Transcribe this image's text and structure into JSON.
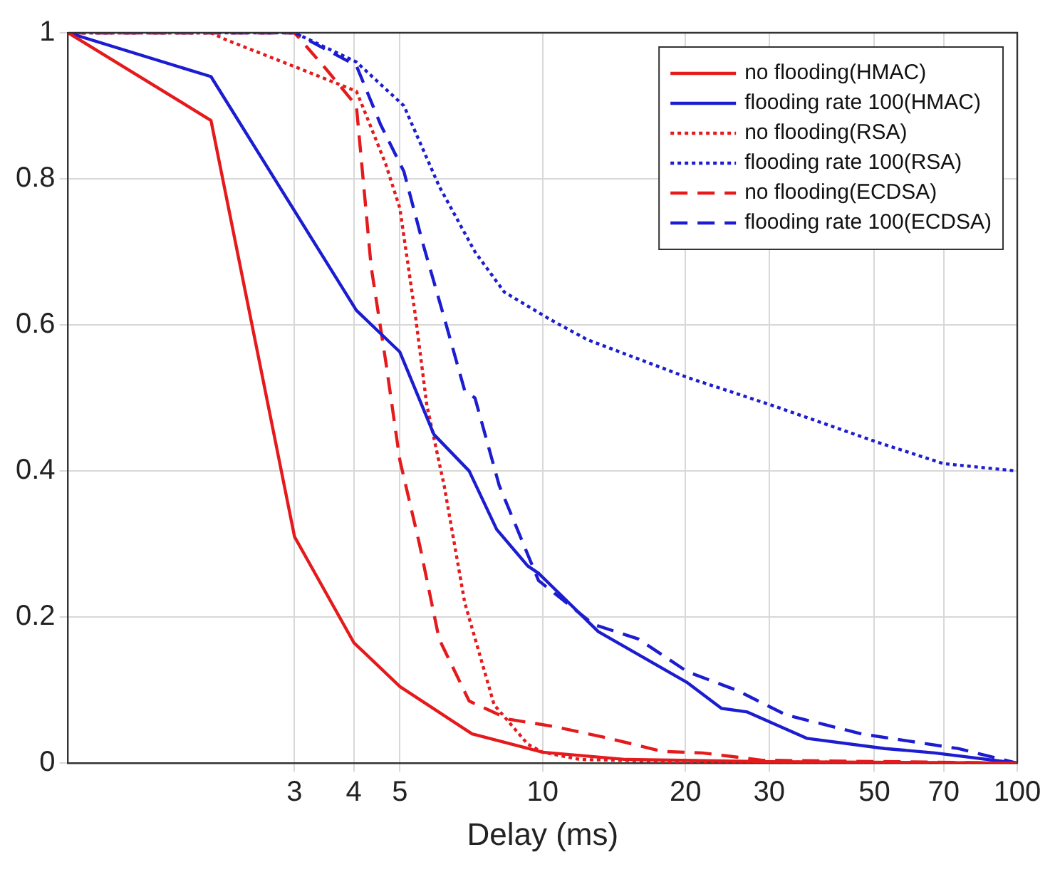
{
  "chart_data": {
    "type": "line",
    "xlabel": "Delay (ms)",
    "log": "x",
    "grid": true,
    "legend": "top right",
    "marker": "none",
    "xlim": [
      1,
      100
    ],
    "xticks": [
      3,
      4,
      5,
      10,
      20,
      30,
      50,
      70,
      100
    ],
    "ylim": [
      0,
      1
    ],
    "yticks": [
      0,
      0.2,
      0.4,
      0.6,
      0.8,
      1
    ],
    "series": [
      {
        "name": "no flooding(HMAC)",
        "color": "#e41a1c",
        "line_style": "solid",
        "x": [
          1,
          2,
          3,
          4,
          5,
          7.1,
          10,
          15,
          30,
          100
        ],
        "values": [
          1,
          0.88,
          0.31,
          0.165,
          0.105,
          0.04,
          0.015,
          0.005,
          0.002,
          0
        ]
      },
      {
        "name": "flooding rate 100(HMAC)",
        "color": "#1c1cd0",
        "line_style": "solid",
        "x": [
          1,
          2,
          4.05,
          5,
          5.9,
          7,
          8,
          9.3,
          9.8,
          13.1,
          20.2,
          23.8,
          27,
          36,
          52.6,
          67,
          100
        ],
        "values": [
          1,
          0.94,
          0.62,
          0.563,
          0.45,
          0.4,
          0.32,
          0.27,
          0.26,
          0.18,
          0.11,
          0.075,
          0.07,
          0.034,
          0.02,
          0.014,
          0
        ]
      },
      {
        "name": "no flooding(RSA)",
        "color": "#e41a1c",
        "line_style": "dotted",
        "x": [
          1,
          2,
          2.16,
          3.1,
          4.05,
          4.2,
          4.67,
          5,
          5.4,
          5.7,
          6.2,
          6.85,
          7.9,
          9.3,
          10,
          12,
          20,
          100
        ],
        "values": [
          1,
          1,
          0.99,
          0.95,
          0.92,
          0.895,
          0.82,
          0.76,
          0.61,
          0.49,
          0.38,
          0.22,
          0.08,
          0.026,
          0.015,
          0.005,
          0.002,
          0
        ]
      },
      {
        "name": "flooding rate 100(RSA)",
        "color": "#1c1cd0",
        "line_style": "dotted",
        "x": [
          1,
          3,
          4.05,
          5.1,
          6.05,
          7.2,
          8.3,
          10.4,
          12.4,
          20.2,
          30.4,
          50.4,
          70,
          100
        ],
        "values": [
          1,
          1,
          0.96,
          0.9,
          0.79,
          0.7,
          0.645,
          0.607,
          0.58,
          0.528,
          0.49,
          0.44,
          0.41,
          0.4
        ]
      },
      {
        "name": "no flooding(ECDSA)",
        "color": "#e41a1c",
        "line_style": "dashed",
        "x": [
          1,
          3,
          3.5,
          4.05,
          4.13,
          4.35,
          4.67,
          5,
          5.5,
          6.05,
          7,
          8.5,
          10.6,
          14,
          17.9,
          21.7,
          29,
          100
        ],
        "values": [
          1,
          1,
          0.95,
          0.9,
          0.84,
          0.68,
          0.55,
          0.415,
          0.3,
          0.17,
          0.085,
          0.06,
          0.05,
          0.033,
          0.016,
          0.014,
          0.004,
          0
        ]
      },
      {
        "name": "flooding rate 100(ECDSA)",
        "color": "#1c1cd0",
        "line_style": "dashed",
        "x": [
          1,
          3,
          4.05,
          4.55,
          5.1,
          5.6,
          6.2,
          6.85,
          7.2,
          8.1,
          9.8,
          12.8,
          15.9,
          20.2,
          25.6,
          32.6,
          47,
          75,
          100
        ],
        "values": [
          1,
          1,
          0.955,
          0.875,
          0.81,
          0.71,
          0.61,
          0.51,
          0.5,
          0.38,
          0.25,
          0.19,
          0.17,
          0.125,
          0.1,
          0.066,
          0.04,
          0.02,
          0
        ]
      }
    ]
  }
}
